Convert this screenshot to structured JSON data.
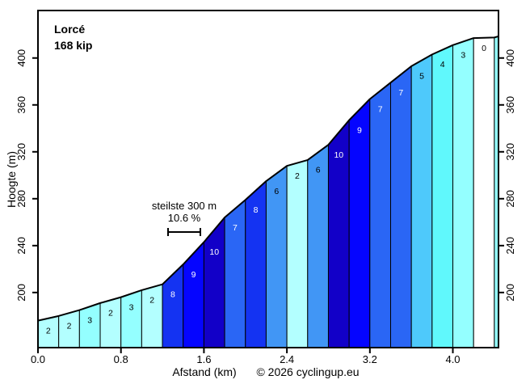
{
  "chart_data": {
    "type": "area",
    "title": "Lorcé",
    "subtitle": "168 kip",
    "xlabel": "Afstand (km)",
    "ylabel": "Hoogte (m)",
    "footer": "© 2026 cyclingup.eu",
    "grid": false,
    "legend": "none",
    "xlim_km": [
      0,
      4.44
    ],
    "ylim_m": [
      153,
      440.5
    ],
    "x_ticks": [
      {
        "km": 0.0,
        "label": "0.0"
      },
      {
        "km": 0.8,
        "label": "0.8"
      },
      {
        "km": 1.6,
        "label": "1.6"
      },
      {
        "km": 2.4,
        "label": "2.4"
      },
      {
        "km": 3.2,
        "label": "3.2"
      },
      {
        "km": 4.0,
        "label": "4.0"
      }
    ],
    "y_ticks": [
      {
        "m": 200,
        "label": "200"
      },
      {
        "m": 240,
        "label": "240"
      },
      {
        "m": 280,
        "label": "280"
      },
      {
        "m": 320,
        "label": "320"
      },
      {
        "m": 360,
        "label": "360"
      },
      {
        "m": 400,
        "label": "400"
      }
    ],
    "profile_km_elev": [
      [
        0.0,
        176
      ],
      [
        0.2,
        180
      ],
      [
        0.4,
        185
      ],
      [
        0.6,
        191
      ],
      [
        0.8,
        196
      ],
      [
        1.0,
        202
      ],
      [
        1.2,
        207
      ],
      [
        1.4,
        224
      ],
      [
        1.6,
        243
      ],
      [
        1.8,
        264
      ],
      [
        2.0,
        279
      ],
      [
        2.2,
        295
      ],
      [
        2.4,
        308
      ],
      [
        2.6,
        313
      ],
      [
        2.8,
        326
      ],
      [
        3.0,
        347
      ],
      [
        3.2,
        365
      ],
      [
        3.4,
        379
      ],
      [
        3.6,
        393
      ],
      [
        3.8,
        403
      ],
      [
        4.0,
        411
      ],
      [
        4.2,
        417
      ],
      [
        4.4,
        417.5
      ],
      [
        4.44,
        418.5
      ]
    ],
    "segments": [
      {
        "label": "2",
        "grade": 2
      },
      {
        "label": "2",
        "grade": 2
      },
      {
        "label": "3",
        "grade": 3
      },
      {
        "label": "2",
        "grade": 2
      },
      {
        "label": "3",
        "grade": 3
      },
      {
        "label": "2",
        "grade": 2
      },
      {
        "label": "8",
        "grade": 8
      },
      {
        "label": "9",
        "grade": 9
      },
      {
        "label": "10",
        "grade": 10
      },
      {
        "label": "7",
        "grade": 7
      },
      {
        "label": "8",
        "grade": 8
      },
      {
        "label": "6",
        "grade": 6
      },
      {
        "label": "2",
        "grade": 2
      },
      {
        "label": "6",
        "grade": 6
      },
      {
        "label": "10",
        "grade": 10
      },
      {
        "label": "9",
        "grade": 9
      },
      {
        "label": "7",
        "grade": 7
      },
      {
        "label": "7",
        "grade": 7
      },
      {
        "label": "5",
        "grade": 5
      },
      {
        "label": "4",
        "grade": 4
      },
      {
        "label": "3",
        "grade": 3
      },
      {
        "label": "0",
        "grade": 0
      },
      {
        "label": "",
        "grade": 3
      }
    ],
    "grade_colors": {
      "0": "#ffffff",
      "2": "#b3ffff",
      "3": "#94ffff",
      "4": "#60f8fc",
      "5": "#4ec9fb",
      "6": "#4196f5",
      "7": "#2a66f5",
      "8": "#1433f2",
      "9": "#0505ff",
      "10": "#1200c8"
    },
    "label_colors": {
      "dark_bar_text": "#ffffff",
      "light_bar_text": "#000000"
    },
    "annotation": {
      "line1": "steilste 300 m",
      "line2": "10.6 %",
      "span_km": 0.3
    }
  }
}
